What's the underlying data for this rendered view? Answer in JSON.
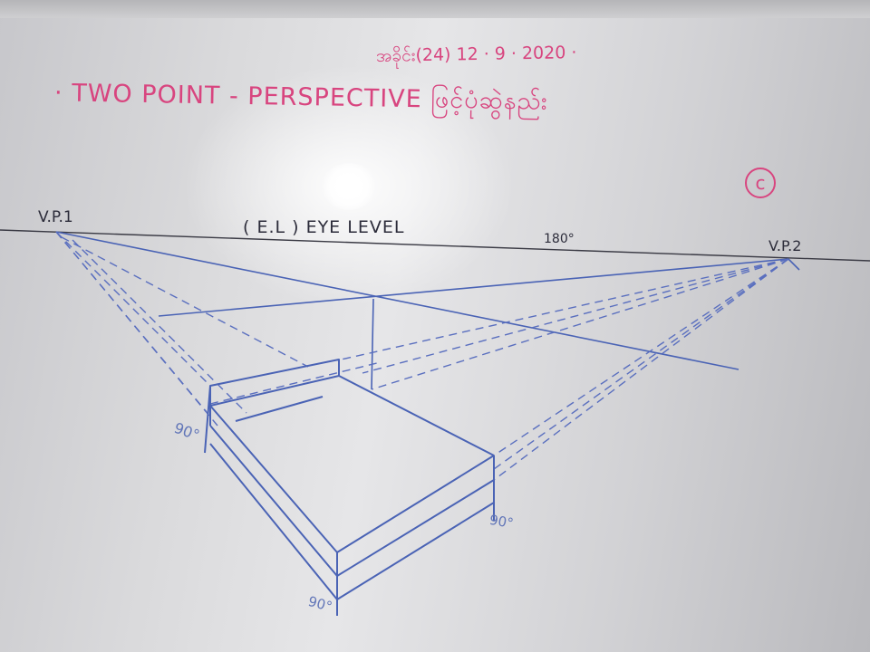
{
  "whiteboard": {
    "date_line": "အခိုင်း(24) 12 · 9 · 2020 ·",
    "title_line": "· TWO POINT - PERSPECTIVE ဖြင့်ပုံဆွဲနည်း",
    "circle_mark": "c",
    "vanishing_point_1": "V.P.1",
    "vanishing_point_2": "V.P.2",
    "eye_level": "( E.L ) EYE LEVEL",
    "horizon_angle": "180°",
    "height_left": "90°",
    "height_right": "90°",
    "height_bottom": "90°"
  },
  "colors": {
    "pink_ink": "#d8457f",
    "blue_ink": "#6276b8",
    "dark_ink": "#2c2c3a",
    "board": "#e6e6e8"
  }
}
